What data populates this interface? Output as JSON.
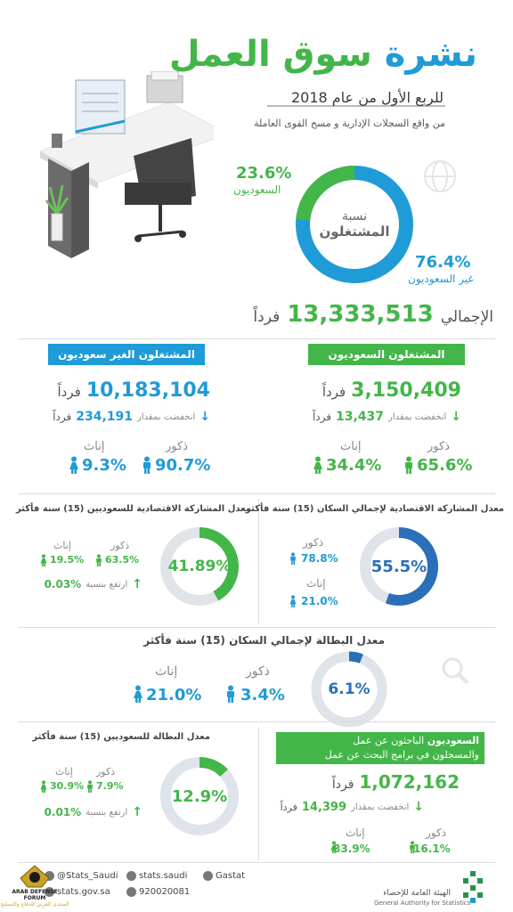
{
  "header": {
    "title_part1": "نشرة",
    "title_part2": "سوق العمل",
    "subtitle": "للربع الأول من عام 2018",
    "source": "من واقع السجلات الإدارية و مسح القوى العاملة"
  },
  "employed": {
    "center_line1": "نسبة",
    "center_line2": "المشتغلون",
    "saudi_pct": "23.6%",
    "saudi_label": "السعوديون",
    "nonsaudi_pct": "76.4%",
    "nonsaudi_label": "غير السعوديون",
    "total_label": "الإجمالي",
    "total_value": "13,333,513",
    "unit": "فرداً"
  },
  "saudi_employed": {
    "title": "المشتغلون السعوديون",
    "value": "3,150,409",
    "unit": "فرداً",
    "change_label": "انخفضت بمقدار",
    "change_value": "13,437",
    "change_unit": "فرداً",
    "male_label": "ذكور",
    "male_pct": "65.6%",
    "female_label": "إناث",
    "female_pct": "34.4%"
  },
  "nonsaudi_employed": {
    "title": "المشتغلون الغير سعوديون",
    "value": "10,183,104",
    "unit": "فرداً",
    "change_label": "انخفضت بمقدار",
    "change_value": "234,191",
    "change_unit": "فرداً",
    "male_label": "ذكور",
    "male_pct": "90.7%",
    "female_label": "إناث",
    "female_pct": "9.3%"
  },
  "participation_total": {
    "title": "معدل المشاركة الاقتصادية لإجمالي السكان (15) سنة فأكثر",
    "rate": "55.5%",
    "rate_value": 55.5,
    "male_label": "ذكور",
    "male_pct": "78.8%",
    "female_label": "إناث",
    "female_pct": "21.0%"
  },
  "participation_saudi": {
    "title": "معدل المشاركة الاقتصادية للسعوديين (15) سنة فأكثر",
    "rate": "41.89%",
    "rate_value": 41.89,
    "male_label": "ذكور",
    "male_pct": "63.5%",
    "female_label": "إناث",
    "female_pct": "19.5%",
    "change_label": "ارتفع بنسبة",
    "change_value": "0.03%"
  },
  "unemployment_total": {
    "title": "معدل البطالة لإجمالي السكان (15) سنة فأكثر",
    "rate": "6.1%",
    "rate_value": 6.1,
    "male_label": "ذكور",
    "male_pct": "3.4%",
    "female_label": "إناث",
    "female_pct": "21.0%"
  },
  "unemployment_saudi": {
    "title": "معدل البطالة للسعوديين (15) سنة فأكثر",
    "rate": "12.9%",
    "rate_value": 12.9,
    "male_label": "ذكور",
    "male_pct": "7.9%",
    "female_label": "إناث",
    "female_pct": "30.9%",
    "change_label": "ارتفع بنسبة",
    "change_value": "0.01%"
  },
  "job_seekers": {
    "title_bold": "السعوديون",
    "title_rest": "الباحثون عن عمل",
    "title_line2": "والمسجلون في برامج البحث عن عمل",
    "value": "1,072,162",
    "unit": "فرداً",
    "change_label": "انخفضت بمقدار",
    "change_value": "14,399",
    "change_unit": "فرداً",
    "male_label": "ذكور",
    "male_pct": "16.1%",
    "female_label": "إناث",
    "female_pct": "83.9%"
  },
  "footer": {
    "twitter": "@Stats_Saudi",
    "website": "stats.gov.sa",
    "facebook": "stats.saudi",
    "phone": "920020081",
    "linkedin": "Gastat",
    "org_ar": "الهيئة العامة للإحصاء",
    "org_en": "General Authority for Statistics",
    "watermark_line1": "ARAB DEFENSE FORUM",
    "watermark_line2": "المنتدى العربي للدفاع والتسليح"
  },
  "colors": {
    "green": "#43b649",
    "blue": "#1f9bd7",
    "darkblue": "#2a6fb8",
    "ring_gray": "#dfe3ea"
  }
}
